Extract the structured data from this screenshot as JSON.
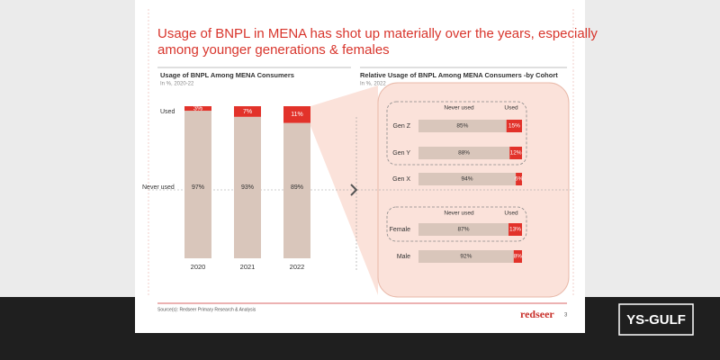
{
  "slide": {
    "title": [
      "Usage of BNPL in MENA has shot up materially over the years, especially",
      "among younger generations & females"
    ],
    "source": "Source(s): Redseer Primary Research & Analysis",
    "logo": "redseer",
    "page": "3",
    "watermark": "YS-GULF"
  },
  "chart_data": [
    {
      "type": "stacked-bar",
      "title": "Usage of BNPL Among MENA Consumers",
      "subtitle": "In %, 2020-22",
      "categories": [
        "2020",
        "2021",
        "2022"
      ],
      "series": [
        {
          "name": "Never used",
          "color": "#d9c6bb",
          "values": [
            97,
            93,
            89
          ],
          "value_labels": [
            "97%",
            "93%",
            "89%"
          ]
        },
        {
          "name": "Used",
          "color": "#e2322a",
          "values": [
            3,
            7,
            11
          ],
          "value_labels": [
            "3%",
            "7%",
            "11%"
          ]
        }
      ]
    },
    {
      "type": "stacked-barh",
      "title": "Relative Usage of BNPL Among MENA Consumers -by Cohort",
      "subtitle": "In %, 2022",
      "categories": [
        "Gen Z",
        "Gen Y",
        "Gen X",
        "Female",
        "Male"
      ],
      "series": [
        {
          "name": "Never used",
          "color": "#d9c6bb",
          "values": [
            85,
            88,
            94,
            87,
            92
          ],
          "value_labels": [
            "85%",
            "88%",
            "94%",
            "87%",
            "92%"
          ]
        },
        {
          "name": "Used",
          "color": "#e2322a",
          "values": [
            15,
            12,
            6,
            13,
            8
          ],
          "value_labels": [
            "15%",
            "12%",
            "6%",
            "13%",
            "8%"
          ]
        }
      ]
    }
  ]
}
